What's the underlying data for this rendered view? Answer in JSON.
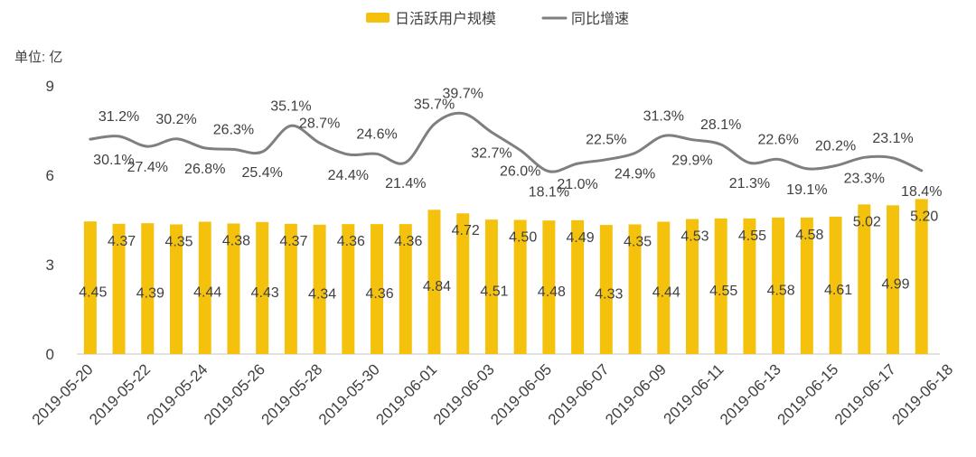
{
  "colors": {
    "bar": "#F4C20D",
    "line": "#7F7F7F",
    "text": "#404040",
    "baseline": "#D9D9D9"
  },
  "chart_data": {
    "type": "bar",
    "title": "",
    "xlabel": "",
    "ylabel": "单位: 亿",
    "ylim": [
      0,
      9
    ],
    "yticks": [
      0,
      3,
      6,
      9
    ],
    "y2lim": [
      -50,
      50
    ],
    "y2_axis_visible": false,
    "grid": false,
    "legend_position": "top-center",
    "x_tick_labels": [
      "2019-05-20",
      "2019-05-22",
      "2019-05-24",
      "2019-05-26",
      "2019-05-28",
      "2019-05-30",
      "2019-06-01",
      "2019-06-03",
      "2019-06-05",
      "2019-06-07",
      "2019-06-09",
      "2019-06-11",
      "2019-06-13",
      "2019-06-15",
      "2019-06-17",
      "2019-06-18"
    ],
    "series": [
      {
        "name": "日活跃用户规模",
        "type": "bar",
        "axis": "left",
        "values": [
          4.45,
          4.37,
          4.39,
          4.35,
          4.44,
          4.38,
          4.43,
          4.37,
          4.34,
          4.36,
          4.36,
          4.36,
          4.84,
          4.72,
          4.51,
          4.5,
          4.48,
          4.49,
          4.33,
          4.35,
          4.44,
          4.53,
          4.55,
          4.55,
          4.58,
          4.58,
          4.61,
          5.02,
          4.99,
          5.2
        ],
        "labels": [
          "4.45",
          "4.37",
          "4.39",
          "4.35",
          "4.44",
          "4.38",
          "4.43",
          "4.37",
          "4.34",
          "4.36",
          "4.36",
          "4.36",
          "4.84",
          "4.72",
          "4.51",
          "4.50",
          "4.48",
          "4.49",
          "4.33",
          "4.35",
          "4.44",
          "4.53",
          "4.55",
          "4.55",
          "4.58",
          "4.58",
          "4.61",
          "5.02",
          "4.99",
          "5.20"
        ]
      },
      {
        "name": "同比增速",
        "type": "line",
        "axis": "right",
        "unit": "%",
        "values": [
          30.1,
          31.2,
          27.4,
          30.2,
          26.8,
          26.3,
          25.4,
          35.1,
          28.7,
          24.4,
          24.6,
          21.4,
          35.7,
          39.7,
          32.7,
          26.0,
          18.1,
          21.0,
          22.5,
          24.9,
          31.3,
          29.9,
          28.1,
          21.3,
          22.6,
          19.1,
          20.2,
          23.3,
          23.1,
          18.4
        ],
        "labels": [
          "30.1%",
          "31.2%",
          "27.4%",
          "30.2%",
          "26.8%",
          "26.3%",
          "25.4%",
          "35.1%",
          "28.7%",
          "24.4%",
          "24.6%",
          "21.4%",
          "35.7%",
          "39.7%",
          "32.7%",
          "26.0%",
          "18.1%",
          "21.0%",
          "22.5%",
          "24.9%",
          "31.3%",
          "29.9%",
          "28.1%",
          "21.3%",
          "22.6%",
          "19.1%",
          "20.2%",
          "23.3%",
          "23.1%",
          "18.4%"
        ]
      }
    ]
  }
}
